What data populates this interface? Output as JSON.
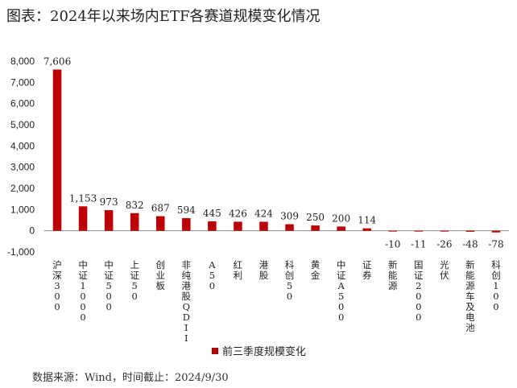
{
  "title": "图表：2024年以来场内ETF各赛道规模变化情况",
  "source": "数据来源：Wind，时间截止：2024/9/30",
  "colors": {
    "bar": "#C00000",
    "axis": "#888888",
    "text": "#222222"
  },
  "chart_data": {
    "type": "bar",
    "title": "",
    "xlabel": "",
    "ylabel": "",
    "ylim": [
      -1000,
      8000
    ],
    "yticks": [
      -1000,
      0,
      1000,
      2000,
      3000,
      4000,
      5000,
      6000,
      7000,
      8000
    ],
    "ytick_labels": [
      "-1,000",
      "0",
      "1,000",
      "2,000",
      "3,000",
      "4,000",
      "5,000",
      "6,000",
      "7,000",
      "8,000"
    ],
    "grid": false,
    "legend_position": "bottom",
    "categories": [
      "沪深300",
      "中证1000",
      "中证500",
      "上证50",
      "创业板",
      "非纯港股QDII",
      "A50",
      "红利",
      "港股",
      "科创50",
      "黄金",
      "中证A500",
      "证券",
      "新能源",
      "国证2000",
      "光伏",
      "新能源车及电池",
      "科创100"
    ],
    "series": [
      {
        "name": "前三季度规模变化",
        "values": [
          7606,
          1153,
          973,
          832,
          687,
          594,
          445,
          426,
          424,
          309,
          250,
          200,
          114,
          -10,
          -11,
          -26,
          -48,
          -78
        ],
        "labels": [
          "7,606",
          "1,153",
          "973",
          "832",
          "687",
          "594",
          "445",
          "426",
          "424",
          "309",
          "250",
          "200",
          "114",
          "-10",
          "-11",
          "-26",
          "-48",
          "-78"
        ]
      }
    ]
  }
}
